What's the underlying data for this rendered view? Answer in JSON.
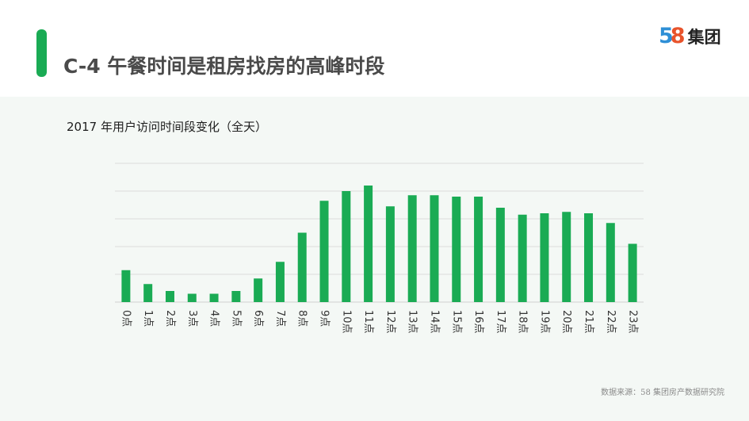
{
  "header": {
    "title": "C-4  午餐时间是租房找房的高峰时段",
    "logo": {
      "digit_5": "5",
      "digit_8": "8",
      "text": "集团"
    }
  },
  "colors": {
    "accent": "#1aab54",
    "bar": "#1aab54",
    "grid": "#dcdcdc",
    "panel": "#f4f8f5"
  },
  "chart_data": {
    "type": "bar",
    "title": "2017 年用户访问时间段变化（全天）",
    "categories": [
      "0点",
      "1点",
      "2点",
      "3点",
      "4点",
      "5点",
      "6点",
      "7点",
      "8点",
      "9点",
      "10点",
      "11点",
      "12点",
      "13点",
      "14点",
      "15点",
      "16点",
      "17点",
      "18点",
      "19点",
      "20点",
      "21点",
      "22点",
      "23点"
    ],
    "values": [
      23,
      13,
      8,
      6,
      6,
      8,
      17,
      29,
      50,
      73,
      80,
      84,
      69,
      77,
      77,
      76,
      76,
      68,
      63,
      64,
      65,
      64,
      57,
      42
    ],
    "ylim": [
      0,
      100
    ],
    "grid": true,
    "legend": "none",
    "xlabel": "",
    "ylabel": ""
  },
  "footer": {
    "source": "数据来源：58 集团房产数据研究院"
  }
}
